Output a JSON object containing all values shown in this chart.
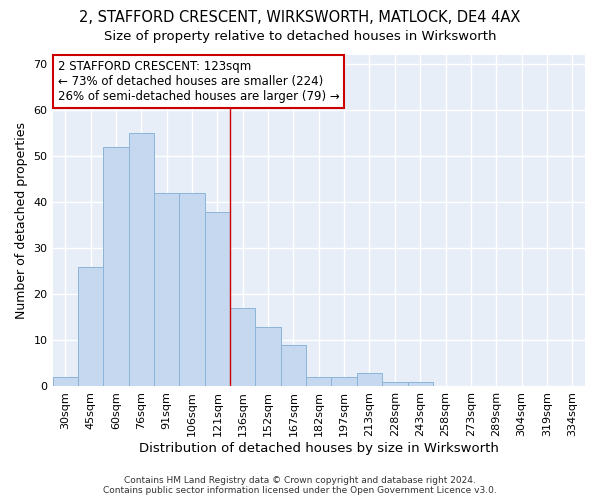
{
  "title": "2, STAFFORD CRESCENT, WIRKSWORTH, MATLOCK, DE4 4AX",
  "subtitle": "Size of property relative to detached houses in Wirksworth",
  "xlabel": "Distribution of detached houses by size in Wirksworth",
  "ylabel": "Number of detached properties",
  "categories": [
    "30sqm",
    "45sqm",
    "60sqm",
    "76sqm",
    "91sqm",
    "106sqm",
    "121sqm",
    "136sqm",
    "152sqm",
    "167sqm",
    "182sqm",
    "197sqm",
    "213sqm",
    "228sqm",
    "243sqm",
    "258sqm",
    "273sqm",
    "289sqm",
    "304sqm",
    "319sqm",
    "334sqm"
  ],
  "values": [
    2,
    26,
    52,
    55,
    42,
    42,
    38,
    17,
    13,
    9,
    2,
    2,
    3,
    1,
    1,
    0,
    0,
    0,
    0,
    0,
    0
  ],
  "bar_color": "#c5d8f0",
  "bar_edge_color": "#8ab4d8",
  "vline_color": "#cc0000",
  "annotation_line1": "2 STAFFORD CRESCENT: 123sqm",
  "annotation_line2": "← 73% of detached houses are smaller (224)",
  "annotation_line3": "26% of semi-detached houses are larger (79) →",
  "annotation_box_color": "#ffffff",
  "annotation_box_edge": "#cc0000",
  "ylim": [
    0,
    72
  ],
  "yticks": [
    0,
    10,
    20,
    30,
    40,
    50,
    60,
    70
  ],
  "bg_color": "#e8eef8",
  "grid_color": "#ffffff",
  "footer1": "Contains HM Land Registry data © Crown copyright and database right 2024.",
  "footer2": "Contains public sector information licensed under the Open Government Licence v3.0.",
  "title_fontsize": 10.5,
  "subtitle_fontsize": 9.5,
  "tick_fontsize": 8,
  "ylabel_fontsize": 9,
  "xlabel_fontsize": 9.5,
  "annotation_fontsize": 8.5,
  "footer_fontsize": 6.5
}
